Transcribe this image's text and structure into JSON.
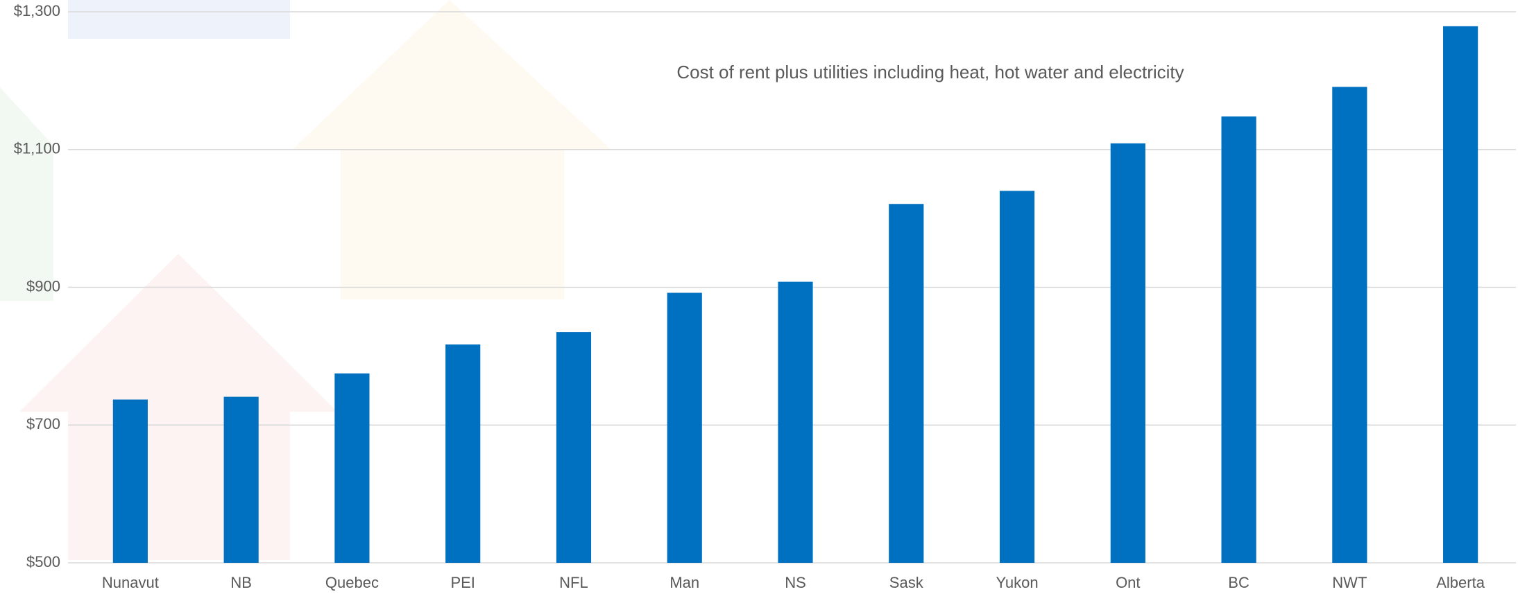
{
  "chart_data": {
    "type": "bar",
    "annotation": "Cost of rent plus utilities including heat, hot water and electricity",
    "categories": [
      "Nunavut",
      "NB",
      "Quebec",
      "PEI",
      "NFL",
      "Man",
      "NS",
      "Sask",
      "Yukon",
      "Ont",
      "BC",
      "NWT",
      "Alberta"
    ],
    "values": [
      737,
      741,
      775,
      817,
      835,
      892,
      908,
      1021,
      1040,
      1109,
      1148,
      1191,
      1279
    ],
    "color": "#0070c0",
    "ylim": [
      500,
      1300
    ],
    "yticks": [
      {
        "value": 500,
        "label": "$500"
      },
      {
        "value": 700,
        "label": "$700"
      },
      {
        "value": 900,
        "label": "$900"
      },
      {
        "value": 1100,
        "label": "$1,100"
      },
      {
        "value": 1300,
        "label": "$1,300"
      }
    ],
    "grid": true
  }
}
